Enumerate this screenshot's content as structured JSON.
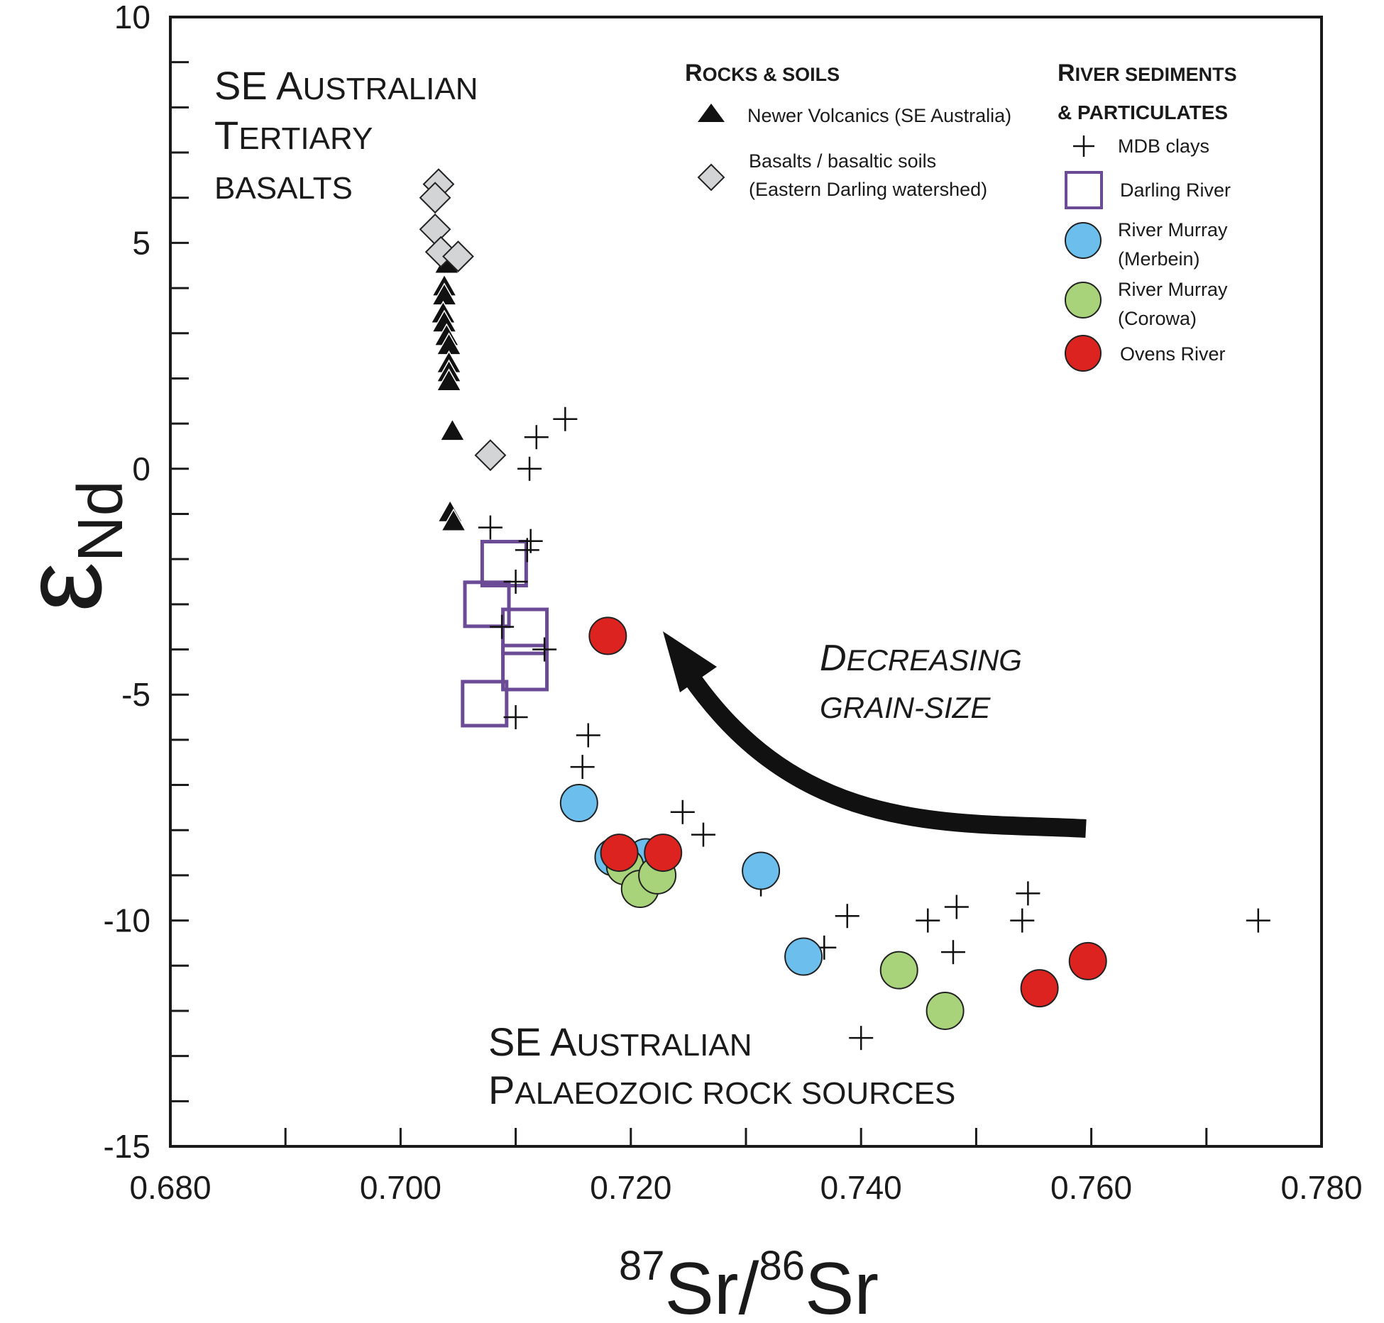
{
  "chart_data": {
    "type": "scatter",
    "x_label": {
      "sup1": "87",
      "el1": "Sr/",
      "sup2": "86",
      "el2": "Sr"
    },
    "y_label": {
      "main": "ε",
      "sub": "Nd"
    },
    "x_range": [
      0.68,
      0.78
    ],
    "y_range": [
      -15,
      10
    ],
    "x_ticks": [
      "0.680",
      "0.700",
      "0.720",
      "0.740",
      "0.760",
      "0.780"
    ],
    "x_tick_values": [
      0.68,
      0.7,
      0.72,
      0.74,
      0.76,
      0.78
    ],
    "y_ticks": [
      "10",
      "5",
      "0",
      "-5",
      "-10",
      "-15"
    ],
    "y_tick_values": [
      10,
      5,
      0,
      -5,
      -10,
      -15
    ],
    "annotations": {
      "tertiary": {
        "l1a": "SE A",
        "l1b": "USTRALIAN",
        "l2a": "T",
        "l2b": "ERTIARY",
        "l3": "BASALTS"
      },
      "palaeozoic": {
        "l1a": "SE A",
        "l1b": "USTRALIAN",
        "l2a": "P",
        "l2b": "ALAEOZOIC ROCK SOURCES"
      },
      "arrow": {
        "l1a": "D",
        "l1b": "ECREASING",
        "l2": "GRAIN-SIZE"
      }
    },
    "legend": {
      "rocks_header": {
        "a": "R",
        "b": "OCKS & SOILS"
      },
      "river_header": {
        "l1a": "R",
        "l1b": "IVER SEDIMENTS",
        "l2": "& PARTICULATES"
      },
      "newer_volcanics": "Newer Volcanics (SE Australia)",
      "basalts_l1": "Basalts / basaltic soils",
      "basalts_l2": "(Eastern Darling watershed)",
      "mdb_clays": "MDB clays",
      "darling": "Darling River",
      "merbein_l1": "River Murray",
      "merbein_l2": "(Merbein)",
      "corowa_l1": "River Murray",
      "corowa_l2": "(Corowa)",
      "ovens": "Ovens River"
    },
    "colors": {
      "triangle": "#111111",
      "diamond": "#d3d4d6",
      "darling": "#6b4a96",
      "merbein": "#6cbfec",
      "corowa": "#a9d37a",
      "ovens": "#dd2320",
      "arrow": "#111111"
    },
    "series": [
      {
        "name": "Newer Volcanics (SE Australia)",
        "marker": "triangle",
        "points": [
          [
            0.704,
            4.5
          ],
          [
            0.7038,
            4.0
          ],
          [
            0.7038,
            3.8
          ],
          [
            0.7037,
            3.4
          ],
          [
            0.7038,
            3.2
          ],
          [
            0.704,
            2.9
          ],
          [
            0.7042,
            2.7
          ],
          [
            0.7042,
            2.3
          ],
          [
            0.7042,
            2.1
          ],
          [
            0.7042,
            1.9
          ],
          [
            0.7045,
            0.8
          ],
          [
            0.7043,
            -1.0
          ],
          [
            0.7046,
            -1.2
          ]
        ]
      },
      {
        "name": "Basalts / basaltic soils",
        "marker": "diamond",
        "points": [
          [
            0.7033,
            6.3
          ],
          [
            0.703,
            6.0
          ],
          [
            0.703,
            5.3
          ],
          [
            0.7035,
            4.8
          ],
          [
            0.705,
            4.7
          ],
          [
            0.7078,
            0.3
          ]
        ]
      },
      {
        "name": "MDB clays",
        "marker": "plus",
        "points": [
          [
            0.7143,
            1.1
          ],
          [
            0.7118,
            0.7
          ],
          [
            0.7112,
            0.0
          ],
          [
            0.7078,
            -1.3
          ],
          [
            0.7113,
            -1.6
          ],
          [
            0.711,
            -1.8
          ],
          [
            0.71,
            -2.5
          ],
          [
            0.7088,
            -3.5
          ],
          [
            0.7125,
            -4.0
          ],
          [
            0.71,
            -5.5
          ],
          [
            0.7163,
            -5.9
          ],
          [
            0.7158,
            -6.6
          ],
          [
            0.7245,
            -7.6
          ],
          [
            0.7263,
            -8.1
          ],
          [
            0.7313,
            -9.2
          ],
          [
            0.7388,
            -9.9
          ],
          [
            0.7368,
            -10.6
          ],
          [
            0.7458,
            -10.0
          ],
          [
            0.7483,
            -9.7
          ],
          [
            0.748,
            -10.7
          ],
          [
            0.7545,
            -9.4
          ],
          [
            0.754,
            -10.0
          ],
          [
            0.74,
            -12.6
          ],
          [
            0.7745,
            -10.0
          ]
        ]
      },
      {
        "name": "Darling River",
        "marker": "square",
        "points": [
          [
            0.709,
            -2.1
          ],
          [
            0.7075,
            -3.0
          ],
          [
            0.7108,
            -3.6
          ],
          [
            0.7108,
            -4.4
          ],
          [
            0.7073,
            -5.2
          ]
        ]
      },
      {
        "name": "River Murray (Merbein)",
        "marker": "circle",
        "color_key": "merbein",
        "points": [
          [
            0.7155,
            -7.4
          ],
          [
            0.7185,
            -8.6
          ],
          [
            0.7213,
            -8.6
          ],
          [
            0.7313,
            -8.9
          ],
          [
            0.735,
            -10.8
          ]
        ]
      },
      {
        "name": "River Murray (Corowa)",
        "marker": "circle",
        "color_key": "corowa",
        "points": [
          [
            0.7195,
            -8.8
          ],
          [
            0.7208,
            -9.3
          ],
          [
            0.7223,
            -9.0
          ],
          [
            0.7433,
            -11.1
          ],
          [
            0.7473,
            -12.0
          ]
        ]
      },
      {
        "name": "Ovens River",
        "marker": "circle",
        "color_key": "ovens",
        "points": [
          [
            0.718,
            -3.7
          ],
          [
            0.719,
            -8.5
          ],
          [
            0.7228,
            -8.5
          ],
          [
            0.7597,
            -10.9
          ],
          [
            0.7555,
            -11.5
          ]
        ]
      }
    ]
  }
}
